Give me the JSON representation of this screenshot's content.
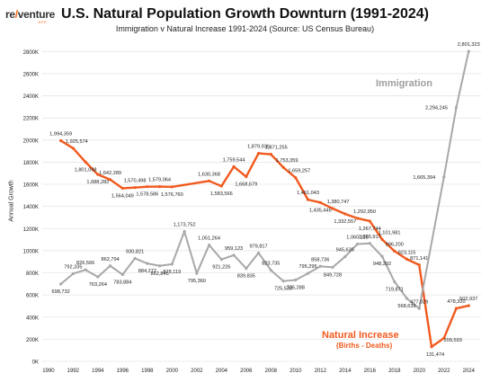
{
  "brand": {
    "logo_prefix": "re",
    "logo_accent": "/",
    "logo_suffix": "venture",
    "logo_sub": "APP"
  },
  "title": "U.S. Natural Population Growth Downturn (1991-2024)",
  "subtitle": "Immigration v Natural Increase 1991-2024 (Source: US Census Bureau)",
  "annotations": {
    "immigration": "Immigration",
    "natural": "Natural Increase",
    "natural_sub": "(Births - Deaths)"
  },
  "colors": {
    "immigration": "#a8a8a8",
    "natural": "#f05a1e",
    "grid": "#e6e6e6",
    "text": "#222222"
  },
  "chart_data": {
    "type": "line",
    "title": "U.S. Natural Population Growth Downturn (1991-2024)",
    "subtitle": "Immigration v Natural Increase 1991-2024 (Source: US Census Bureau)",
    "xlabel": "",
    "ylabel": "Annual Growth",
    "x": [
      1991,
      1992,
      1993,
      1994,
      1995,
      1996,
      1997,
      1998,
      1999,
      2000,
      2001,
      2002,
      2003,
      2004,
      2005,
      2006,
      2007,
      2008,
      2009,
      2010,
      2011,
      2012,
      2013,
      2014,
      2015,
      2016,
      2017,
      2018,
      2019,
      2020,
      2021,
      2022,
      2023,
      2024
    ],
    "xticks": [
      1990,
      1992,
      1994,
      1996,
      1998,
      2000,
      2002,
      2004,
      2006,
      2008,
      2010,
      2012,
      2014,
      2016,
      2018,
      2020,
      2022,
      2024
    ],
    "xlim": [
      1989.5,
      2025
    ],
    "ylim": [
      0,
      2900000
    ],
    "yticks": [
      0,
      200000,
      400000,
      600000,
      800000,
      1000000,
      1200000,
      1400000,
      1600000,
      1800000,
      2000000,
      2200000,
      2400000,
      2600000,
      2800000
    ],
    "ytick_labels": [
      "0K",
      "200K",
      "400K",
      "600K",
      "800K",
      "1000K",
      "1200K",
      "1400K",
      "1600K",
      "1800K",
      "2000K",
      "2200K",
      "2400K",
      "2600K",
      "2800K"
    ],
    "grid": true,
    "series": [
      {
        "name": "Natural Increase",
        "color": "#f05a1e",
        "values": [
          1994359,
          1925574,
          1801098,
          1688282,
          1642289,
          1564049,
          1570498,
          1578586,
          1579064,
          1576760,
          1630368,
          1583566,
          1759544,
          1668679,
          1879936,
          1871255,
          1753359,
          1659257,
          1461043,
          1435445,
          1380747,
          1332557,
          1292950,
          1267744,
          1101981,
          996200,
          923115,
          871141,
          131474,
          209593,
          478320,
          502937
        ],
        "x": [
          1991,
          1992,
          1993,
          1994,
          1995,
          1996,
          1997,
          1998,
          1999,
          2000,
          2003,
          2004,
          2005,
          2006,
          2007,
          2008,
          2009,
          2010,
          2011,
          2012,
          2013,
          2014,
          2015,
          2016,
          2017,
          2018,
          2019,
          2020,
          2021,
          2022,
          2023,
          2024
        ],
        "labels": [
          "1,994,359",
          "1,925,574",
          "1,801,098",
          "1,688,282",
          "1,642,289",
          "1,564,049",
          "1,570,498",
          "1,578,586",
          "1,579,064",
          "1,576,760",
          "1,630,368",
          "1,583,566",
          "1,759,544",
          "1,668,679",
          "1,879,936",
          "1,871,255",
          "1,753,359",
          "1,659,257",
          "1,461,043",
          "1,435,445",
          "1,380,747",
          "1,332,557",
          "1,292,950",
          "1,267,744",
          "1,101,981",
          "996,200",
          "923,115",
          "871,141",
          "131,474",
          "209,593",
          "478,320",
          "502,937"
        ]
      },
      {
        "name": "Immigration",
        "color": "#a8a8a8",
        "values": [
          698732,
          792335,
          826566,
          763264,
          862794,
          783884,
          930821,
          884272,
          862845,
          878119,
          1173752,
          795360,
          1051264,
          921226,
          959123,
          839835,
          979817,
          823735,
          725530,
          735288,
          795295,
          858736,
          849728,
          945635,
          1060115,
          1065917,
          948392,
          719871,
          568639,
          477029,
          1665394,
          2294245,
          2801323
        ],
        "x": [
          1991,
          1992,
          1993,
          1994,
          1995,
          1996,
          1997,
          1998,
          1999,
          2000,
          2001,
          2002,
          2003,
          2004,
          2005,
          2006,
          2007,
          2008,
          2009,
          2010,
          2011,
          2012,
          2013,
          2014,
          2015,
          2016,
          2017,
          2018,
          2019,
          2020,
          2022,
          2023,
          2024
        ],
        "labels": [
          "698,732",
          "792,335",
          "826,566",
          "763,264",
          "862,794",
          "783,884",
          "930,821",
          "884,272",
          "862,845",
          "878,119",
          "1,173,752",
          "795,360",
          "1,051,264",
          "921,226",
          "959,123",
          "839,835",
          "979,817",
          "823,735",
          "725,530",
          "735,288",
          "795,295",
          "858,736",
          "849,728",
          "945,635",
          "1,060,115",
          "1,065,917",
          "948,392",
          "719,871",
          "568,639",
          "477,029",
          "1,665,394",
          "2,294,245",
          "2,801,323"
        ]
      }
    ]
  }
}
